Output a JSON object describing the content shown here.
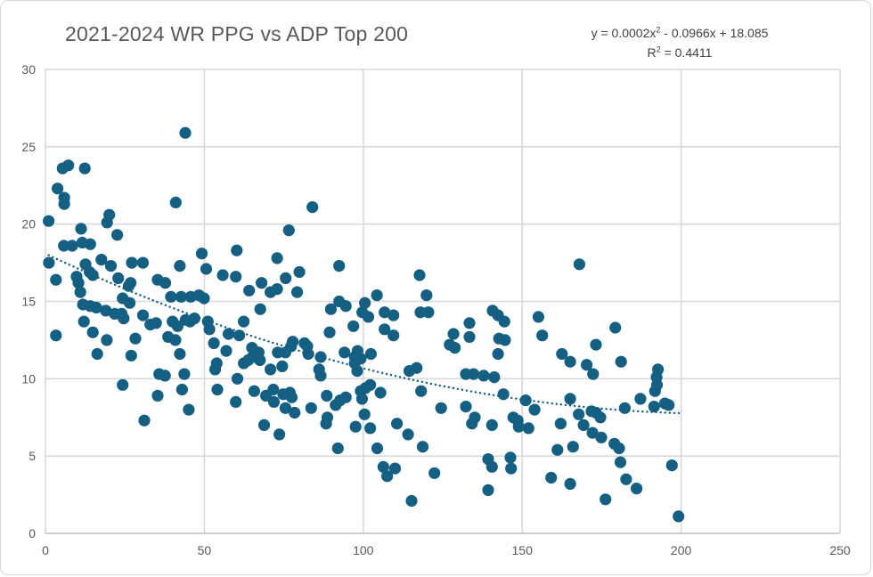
{
  "chart_data": {
    "type": "scatter",
    "title": "2021-2024 WR PPG vs ADP Top 200",
    "xlabel": "",
    "ylabel": "",
    "xlim": [
      0,
      250
    ],
    "ylim": [
      0,
      30
    ],
    "x_ticks": [
      0,
      50,
      100,
      150,
      200,
      250
    ],
    "y_ticks": [
      0,
      5,
      10,
      15,
      20,
      25,
      30
    ],
    "grid": "on",
    "legend": "none",
    "colors": {
      "marker": "#156082",
      "trendline": "#156082",
      "gridline": "#d9d9d9",
      "axis_line": "#bfbfbf",
      "axis_text": "#595959",
      "title_text": "#595959",
      "equation_text": "#404040",
      "border": "#d6d6d6",
      "background": "#ffffff"
    },
    "trendline": {
      "style": "dotted",
      "order": 2,
      "a2": 0.000225,
      "a1": -0.0966,
      "a0": 18.085,
      "x_range": [
        1,
        200
      ],
      "label": {
        "pre": "y = 0.0002x",
        "sup": "2",
        "post": " - 0.0966x + 18.085",
        "r2_pre": "R",
        "r2_sup": "2",
        "r2_post": " = 0.4411"
      }
    },
    "points": [
      [
        44,
        25.9
      ],
      [
        5.4,
        23.6
      ],
      [
        7.2,
        23.8
      ],
      [
        12.4,
        23.6
      ],
      [
        3.8,
        22.3
      ],
      [
        5.9,
        21.7
      ],
      [
        5.9,
        21.3
      ],
      [
        41,
        21.4
      ],
      [
        84,
        21.1
      ],
      [
        20.1,
        20.6
      ],
      [
        19.4,
        20.1
      ],
      [
        1,
        20.2
      ],
      [
        11.2,
        19.7
      ],
      [
        22.6,
        19.3
      ],
      [
        76.6,
        19.6
      ],
      [
        5.8,
        18.6
      ],
      [
        8.4,
        18.6
      ],
      [
        11.6,
        18.8
      ],
      [
        14.1,
        18.7
      ],
      [
        49.2,
        18.1
      ],
      [
        60.2,
        18.3
      ],
      [
        1.1,
        17.5
      ],
      [
        12.6,
        17.4
      ],
      [
        17.6,
        17.7
      ],
      [
        20.6,
        17.3
      ],
      [
        27.2,
        17.5
      ],
      [
        30.7,
        17.5
      ],
      [
        42.3,
        17.3
      ],
      [
        50.6,
        17.1
      ],
      [
        55.8,
        16.7
      ],
      [
        59.9,
        16.6
      ],
      [
        168,
        17.4
      ],
      [
        72.9,
        17.8
      ],
      [
        92.4,
        17.3
      ],
      [
        117.7,
        16.7
      ],
      [
        3.3,
        16.4
      ],
      [
        9.8,
        16.6
      ],
      [
        13.9,
        16.9
      ],
      [
        14.9,
        16.7
      ],
      [
        10.4,
        16.2
      ],
      [
        22.9,
        16.5
      ],
      [
        26.8,
        16.2
      ],
      [
        35.3,
        16.4
      ],
      [
        37.7,
        16.2
      ],
      [
        26.2,
        16.0
      ],
      [
        64.1,
        15.7
      ],
      [
        70.8,
        15.6
      ],
      [
        72.9,
        15.8
      ],
      [
        79.2,
        15.6
      ],
      [
        75.6,
        16.5
      ],
      [
        79.9,
        16.9
      ],
      [
        68,
        16.2
      ],
      [
        11,
        15.6
      ],
      [
        24.3,
        15.2
      ],
      [
        26.5,
        14.9
      ],
      [
        39.5,
        15.3
      ],
      [
        42.7,
        15.3
      ],
      [
        45.7,
        15.3
      ],
      [
        48.3,
        15.4
      ],
      [
        49.9,
        15.2
      ],
      [
        119.9,
        15.4
      ],
      [
        92.4,
        15.0
      ],
      [
        94.5,
        14.7
      ],
      [
        89.8,
        14.5
      ],
      [
        100.5,
        14.9
      ],
      [
        104.3,
        15.4
      ],
      [
        155.1,
        14.0
      ],
      [
        140.7,
        14.4
      ],
      [
        142.4,
        14.1
      ],
      [
        144.4,
        13.7
      ],
      [
        11.8,
        14.8
      ],
      [
        14.1,
        14.7
      ],
      [
        16,
        14.6
      ],
      [
        19,
        14.4
      ],
      [
        21.8,
        14.2
      ],
      [
        24,
        14.2
      ],
      [
        24.6,
        13.9
      ],
      [
        30.7,
        14.1
      ],
      [
        33,
        13.5
      ],
      [
        34.8,
        13.6
      ],
      [
        40,
        13.7
      ],
      [
        41.6,
        13.4
      ],
      [
        44.1,
        13.8
      ],
      [
        45.5,
        13.7
      ],
      [
        46.9,
        13.9
      ],
      [
        51.1,
        13.7
      ],
      [
        67.6,
        14.5
      ],
      [
        99.7,
        14.3
      ],
      [
        101.6,
        14.0
      ],
      [
        106.7,
        14.3
      ],
      [
        109.5,
        14.1
      ],
      [
        118,
        14.3
      ],
      [
        120.5,
        14.3
      ],
      [
        96.9,
        13.4
      ],
      [
        133.4,
        13.6
      ],
      [
        179.3,
        13.3
      ],
      [
        3.3,
        12.8
      ],
      [
        12.1,
        13.7
      ],
      [
        14.9,
        13.0
      ],
      [
        19.3,
        12.5
      ],
      [
        28.3,
        12.6
      ],
      [
        38.6,
        12.7
      ],
      [
        40.9,
        12.5
      ],
      [
        51.6,
        13.2
      ],
      [
        53,
        12.3
      ],
      [
        57.6,
        12.9
      ],
      [
        61,
        12.8
      ],
      [
        89.4,
        13.0
      ],
      [
        106.7,
        13.2
      ],
      [
        109.5,
        12.8
      ],
      [
        128.4,
        12.9
      ],
      [
        133.4,
        12.7
      ],
      [
        127.2,
        12.2
      ],
      [
        128.8,
        12.0
      ],
      [
        142.7,
        12.6
      ],
      [
        144.6,
        12.5
      ],
      [
        156.3,
        12.8
      ],
      [
        173.2,
        12.2
      ],
      [
        16.3,
        11.6
      ],
      [
        27,
        11.5
      ],
      [
        42.3,
        11.6
      ],
      [
        53.9,
        11.0
      ],
      [
        56.9,
        11.8
      ],
      [
        62.4,
        13.7
      ],
      [
        77.8,
        12.4
      ],
      [
        81.5,
        12.3
      ],
      [
        65,
        12.0
      ],
      [
        67.1,
        11.7
      ],
      [
        65.2,
        11.4
      ],
      [
        67.5,
        11.2
      ],
      [
        63.8,
        11.2
      ],
      [
        62.4,
        11.0
      ],
      [
        73.1,
        11.7
      ],
      [
        75.5,
        11.7
      ],
      [
        77.3,
        12.1
      ],
      [
        82.4,
        12.1
      ],
      [
        82.7,
        11.6
      ],
      [
        86.6,
        11.4
      ],
      [
        94.1,
        11.7
      ],
      [
        98.2,
        11.8
      ],
      [
        97.3,
        11.4
      ],
      [
        99.2,
        11.3
      ],
      [
        102.4,
        11.6
      ],
      [
        142.4,
        11.6
      ],
      [
        162.5,
        11.6
      ],
      [
        165.1,
        11.1
      ],
      [
        170.3,
        10.9
      ],
      [
        181.1,
        11.1
      ],
      [
        192.7,
        10.6
      ],
      [
        35.8,
        10.3
      ],
      [
        37.6,
        10.2
      ],
      [
        43.7,
        10.3
      ],
      [
        53.4,
        10.6
      ],
      [
        70.8,
        10.6
      ],
      [
        74.5,
        10.8
      ],
      [
        86.1,
        10.6
      ],
      [
        97.3,
        11.0
      ],
      [
        98.1,
        10.5
      ],
      [
        114.5,
        10.5
      ],
      [
        116.8,
        10.7
      ],
      [
        86.6,
        10.2
      ],
      [
        132.3,
        10.3
      ],
      [
        134.7,
        10.3
      ],
      [
        137.9,
        10.2
      ],
      [
        141.2,
        10.1
      ],
      [
        172.3,
        10.3
      ],
      [
        192.3,
        10.1
      ],
      [
        60.4,
        10.0
      ],
      [
        192.4,
        9.6
      ],
      [
        191.8,
        9.2
      ],
      [
        24.3,
        9.6
      ],
      [
        35.3,
        8.9
      ],
      [
        43,
        9.3
      ],
      [
        54.1,
        9.3
      ],
      [
        65.7,
        9.2
      ],
      [
        69.4,
        8.9
      ],
      [
        71.7,
        9.3
      ],
      [
        71.9,
        8.5
      ],
      [
        74.8,
        9.0
      ],
      [
        76.9,
        9.1
      ],
      [
        77.5,
        8.8
      ],
      [
        88.5,
        8.9
      ],
      [
        92.7,
        8.6
      ],
      [
        94.5,
        8.8
      ],
      [
        99.2,
        9.2
      ],
      [
        100.7,
        9.4
      ],
      [
        102.2,
        9.6
      ],
      [
        105.4,
        9.1
      ],
      [
        118.2,
        9.2
      ],
      [
        144.1,
        9.0
      ],
      [
        59.9,
        8.5
      ],
      [
        45.1,
        8.0
      ],
      [
        75.5,
        8.1
      ],
      [
        78.4,
        7.8
      ],
      [
        83.6,
        8.1
      ],
      [
        91.3,
        8.3
      ],
      [
        99.6,
        8.7
      ],
      [
        124.5,
        8.1
      ],
      [
        132.3,
        8.2
      ],
      [
        151.1,
        8.6
      ],
      [
        153.9,
        8.0
      ],
      [
        165.1,
        8.7
      ],
      [
        182.3,
        8.1
      ],
      [
        187.2,
        8.7
      ],
      [
        191.5,
        8.2
      ],
      [
        194.9,
        8.4
      ],
      [
        196.1,
        8.3
      ],
      [
        31.1,
        7.3
      ],
      [
        68.8,
        7.0
      ],
      [
        73.6,
        6.4
      ],
      [
        88.7,
        7.5
      ],
      [
        88.3,
        7.1
      ],
      [
        97.6,
        6.9
      ],
      [
        100.4,
        7.7
      ],
      [
        102.2,
        6.8
      ],
      [
        110.6,
        7.1
      ],
      [
        114.1,
        6.4
      ],
      [
        135.1,
        7.5
      ],
      [
        134.2,
        7.1
      ],
      [
        140.5,
        7.0
      ],
      [
        147.2,
        7.5
      ],
      [
        148.6,
        7.3
      ],
      [
        148.9,
        6.9
      ],
      [
        152,
        6.8
      ],
      [
        162.1,
        7.1
      ],
      [
        167.8,
        7.7
      ],
      [
        169.3,
        7.0
      ],
      [
        171.8,
        7.9
      ],
      [
        173.2,
        7.8
      ],
      [
        174.6,
        7.5
      ],
      [
        172.1,
        6.5
      ],
      [
        174.9,
        6.2
      ],
      [
        92,
        5.5
      ],
      [
        104.4,
        5.5
      ],
      [
        118.7,
        5.6
      ],
      [
        161.1,
        5.4
      ],
      [
        166,
        5.6
      ],
      [
        179,
        5.8
      ],
      [
        180.5,
        5.5
      ],
      [
        139.3,
        4.8
      ],
      [
        146.3,
        4.9
      ],
      [
        106.3,
        4.3
      ],
      [
        110,
        4.2
      ],
      [
        140.5,
        4.3
      ],
      [
        146.5,
        4.2
      ],
      [
        180.9,
        4.6
      ],
      [
        197.1,
        4.4
      ],
      [
        107.5,
        3.7
      ],
      [
        122.4,
        3.9
      ],
      [
        159.1,
        3.6
      ],
      [
        165.1,
        3.2
      ],
      [
        182.7,
        3.5
      ],
      [
        139.3,
        2.8
      ],
      [
        186,
        2.9
      ],
      [
        176.2,
        2.2
      ],
      [
        115.2,
        2.1
      ],
      [
        199.2,
        1.1
      ]
    ]
  }
}
